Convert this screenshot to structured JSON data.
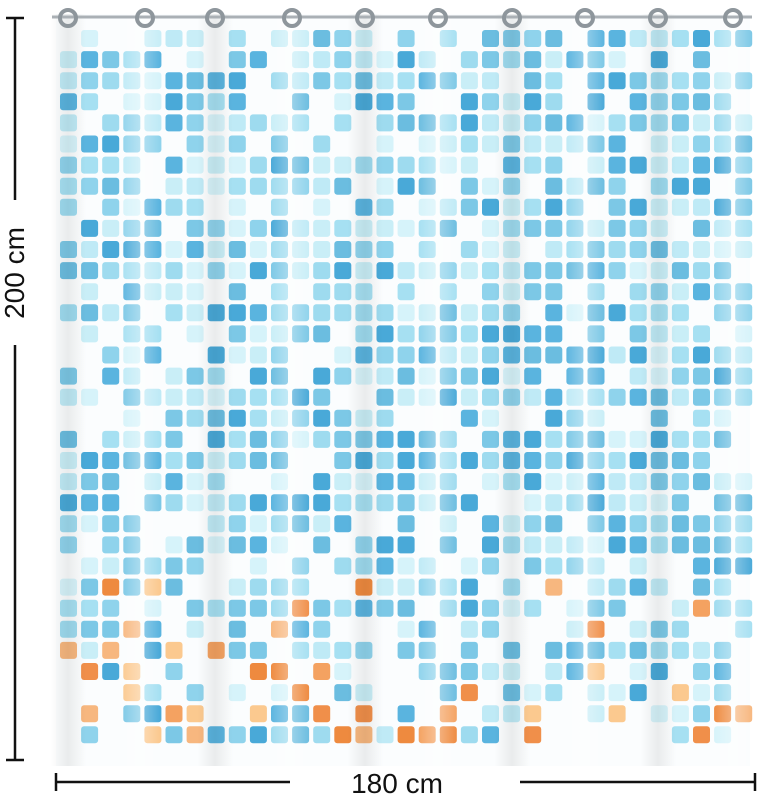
{
  "dimensions": {
    "height": "200 cm",
    "width": "180 cm"
  }
}
